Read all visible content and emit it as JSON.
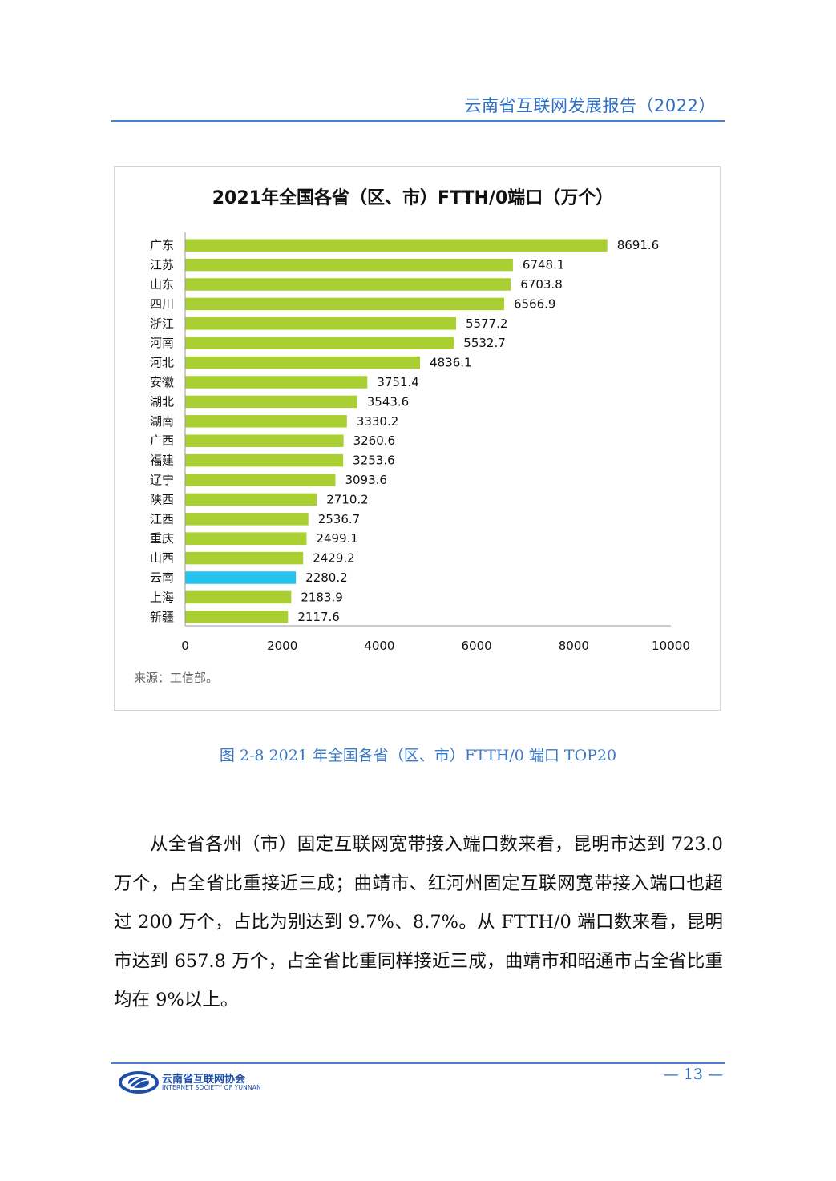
{
  "header": {
    "title": "云南省互联网发展报告（2022）"
  },
  "figure": {
    "source": "来源：工信部。",
    "caption": "图 2-8    2021 年全国各省（区、市）FTTH/0 端口 TOP20"
  },
  "chart_data": {
    "type": "bar",
    "orientation": "horizontal",
    "title": "2021年全国各省（区、市）FTTH/0端口（万个）",
    "categories": [
      "广东",
      "江苏",
      "山东",
      "四川",
      "浙江",
      "河南",
      "河北",
      "安徽",
      "湖北",
      "湖南",
      "广西",
      "福建",
      "辽宁",
      "陕西",
      "江西",
      "重庆",
      "山西",
      "云南",
      "上海",
      "新疆"
    ],
    "values": [
      8691.6,
      6748.1,
      6703.8,
      6566.9,
      5577.2,
      5532.7,
      4836.1,
      3751.4,
      3543.6,
      3330.2,
      3260.6,
      3253.6,
      3093.6,
      2710.2,
      2536.7,
      2499.1,
      2429.2,
      2280.2,
      2183.9,
      2117.6
    ],
    "value_labels": [
      "8691.6",
      "6748.1",
      "6703.8",
      "6566.9",
      "5577.2",
      "5532.7",
      "4836.1",
      "3751.4",
      "3543.6",
      "3330.2",
      "3260.6",
      "3253.6",
      "3093.6",
      "2710.2",
      "2536.7",
      "2499.1",
      "2429.2",
      "2280.2",
      "2183.9",
      "2117.6"
    ],
    "xlim": [
      0,
      10000
    ],
    "x_ticks": [
      "0",
      "2000",
      "4000",
      "6000",
      "8000",
      "10000"
    ],
    "grid": false,
    "colors": {
      "default": "#a9cf33",
      "highlight": "#25c2ee",
      "highlight_category": "云南"
    }
  },
  "body": {
    "paragraph": "从全省各州（市）固定互联网宽带接入端口数来看，昆明市达到 723.0 万个，占全省比重接近三成；曲靖市、红河州固定互联网宽带接入端口也超过 200 万个，占比为别达到 9.7%、8.7%。从 FTTH/0 端口数来看，昆明市达到 657.8 万个，占全省比重同样接近三成，曲靖市和昭通市占全省比重均在 9%以上。"
  },
  "footer": {
    "logo_cn": "云南省互联网协会",
    "logo_en": "INTERNET SOCIETY OF YUNNAN",
    "page_number": "— 13 —"
  }
}
